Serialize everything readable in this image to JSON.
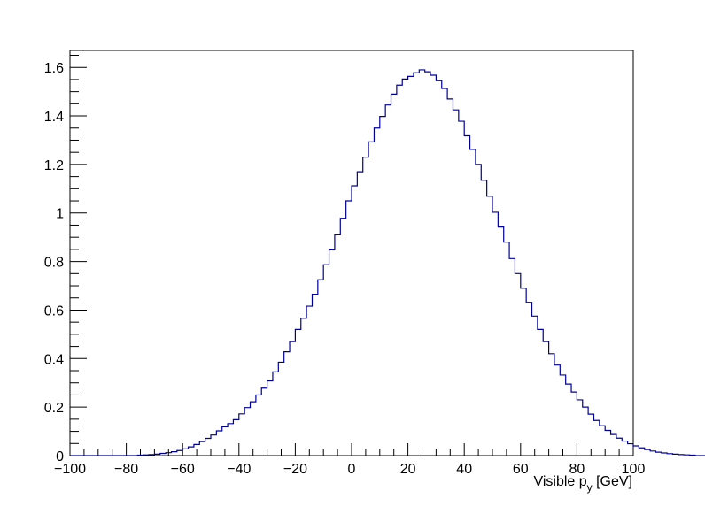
{
  "chart_data": {
    "type": "histogram",
    "title": "",
    "xlabel": "Visible p",
    "xlabel_subscript": "y",
    "xlabel_unit": " [GeV]",
    "ylabel": "",
    "xlim": [
      -100,
      100
    ],
    "ylim": [
      0,
      1.67
    ],
    "xticks": [
      -100,
      -80,
      -60,
      -40,
      -20,
      0,
      20,
      40,
      60,
      80,
      100
    ],
    "xtick_labels": [
      "−100",
      "−80",
      "−60",
      "−40",
      "−20",
      "0",
      "20",
      "40",
      "60",
      "80",
      "100"
    ],
    "yticks": [
      0,
      0.2,
      0.4,
      0.6,
      0.8,
      1,
      1.2,
      1.4,
      1.6
    ],
    "ytick_labels": [
      "0",
      "0.2",
      "0.4",
      "0.6",
      "0.8",
      "1",
      "1.2",
      "1.4",
      "1.6"
    ],
    "bin_edges_start": -100,
    "bin_width": 2,
    "values": [
      0,
      0,
      0,
      0,
      0,
      0,
      0,
      0,
      0,
      0,
      0,
      0,
      0.002,
      0.003,
      0.004,
      0.006,
      0.009,
      0.012,
      0.016,
      0.021,
      0.028,
      0.036,
      0.046,
      0.058,
      0.071,
      0.085,
      0.102,
      0.119,
      0.132,
      0.148,
      0.172,
      0.198,
      0.222,
      0.25,
      0.278,
      0.308,
      0.345,
      0.385,
      0.428,
      0.47,
      0.52,
      0.566,
      0.616,
      0.665,
      0.725,
      0.787,
      0.848,
      0.91,
      0.978,
      1.05,
      1.112,
      1.17,
      1.23,
      1.293,
      1.35,
      1.398,
      1.445,
      1.49,
      1.527,
      1.552,
      1.563,
      1.578,
      1.59,
      1.582,
      1.568,
      1.545,
      1.513,
      1.47,
      1.425,
      1.378,
      1.318,
      1.262,
      1.2,
      1.135,
      1.069,
      1.003,
      0.942,
      0.88,
      0.812,
      0.75,
      0.69,
      0.632,
      0.575,
      0.52,
      0.47,
      0.42,
      0.373,
      0.332,
      0.295,
      0.262,
      0.23,
      0.2,
      0.171,
      0.145,
      0.123,
      0.104,
      0.087,
      0.072,
      0.06,
      0.049,
      0.04,
      0.032,
      0.025,
      0.019,
      0.014,
      0.011,
      0.008,
      0.006,
      0.004,
      0.003,
      0.002,
      0,
      0,
      0,
      0,
      0,
      0,
      0,
      0,
      0
    ],
    "series": [
      {
        "color": "#000099"
      }
    ],
    "grid": false,
    "legend": "none"
  }
}
